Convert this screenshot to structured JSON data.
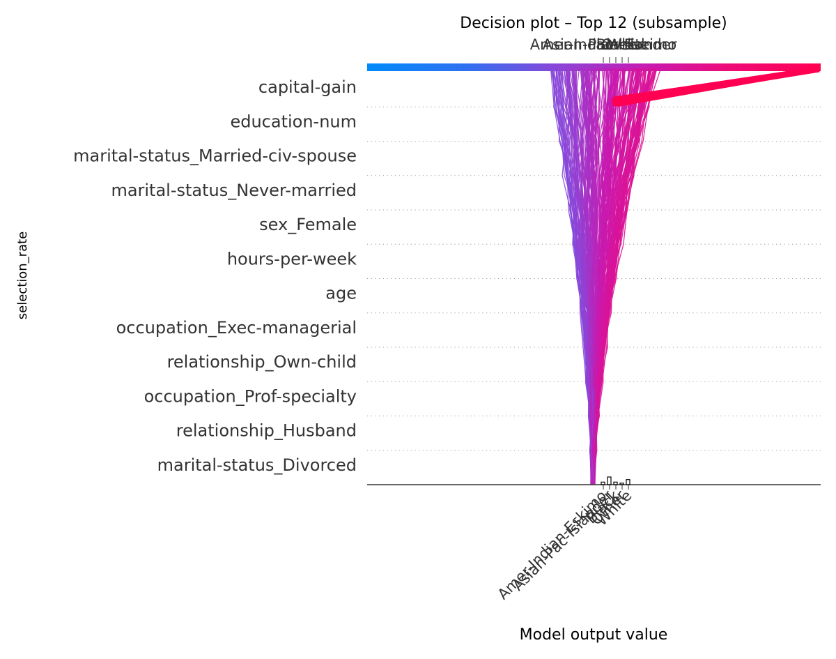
{
  "chart_data": {
    "type": "line",
    "title": "Decision plot – Top 12 (subsample)",
    "xlabel": "Model output value",
    "ylabel": "selection_rate",
    "features": [
      "capital-gain",
      "education-num",
      "marital-status_Married-civ-spouse",
      "marital-status_Never-married",
      "sex_Female",
      "hours-per-week",
      "age",
      "occupation_Exec-managerial",
      "relationship_Own-child",
      "occupation_Prof-specialty",
      "relationship_Husband",
      "marital-status_Divorced"
    ],
    "group_labels": [
      "Amer-Indian-Eskimo",
      "Asian-Pac-Islander",
      "Black",
      "Other",
      "White"
    ],
    "group_hist_counts": [
      1,
      3,
      1,
      0.6,
      2
    ],
    "grid": true,
    "legend": "none",
    "colors": {
      "low": "#008bfb",
      "mid": "#8a46d8",
      "high": "#ff0052",
      "text": "#333333",
      "grid": "#999999"
    }
  }
}
